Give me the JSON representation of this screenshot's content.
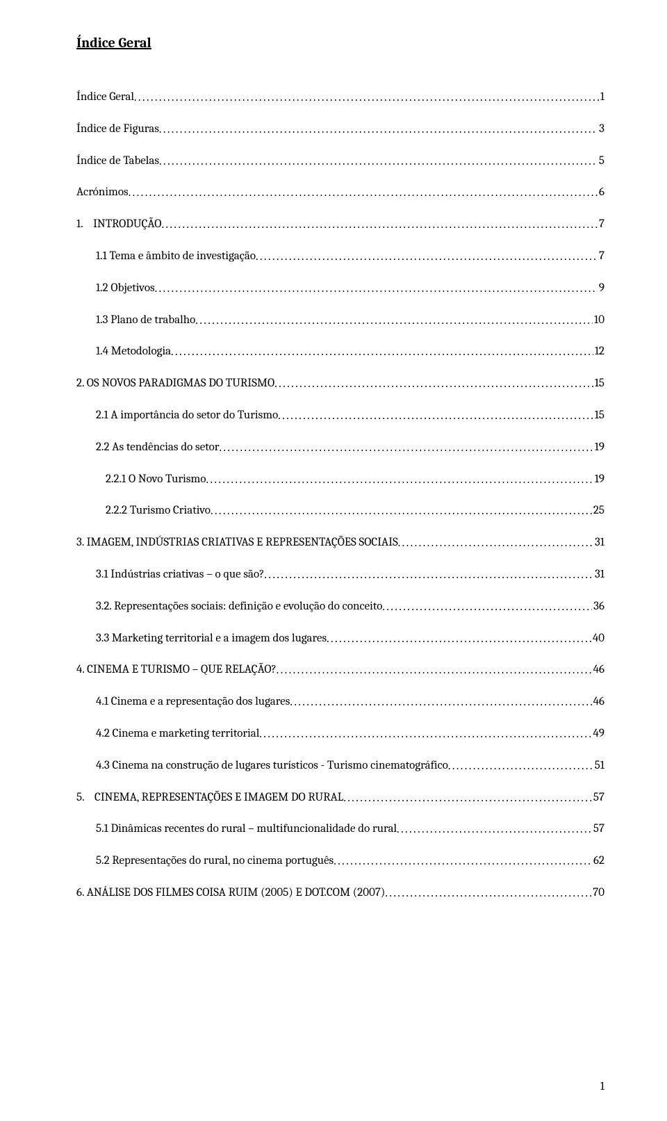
{
  "title": "Índice Geral",
  "page_number": "1",
  "entries": [
    {
      "label": "Índice Geral",
      "page": "1",
      "indent": 0
    },
    {
      "label": "Índice de Figuras",
      "page": "3",
      "indent": 0
    },
    {
      "label": "Índice de Tabelas",
      "page": "5",
      "indent": 0
    },
    {
      "label": "Acrónimos",
      "page": "6",
      "indent": 0
    },
    {
      "label": "1.    INTRODUÇÃO",
      "page": "7",
      "indent": 0
    },
    {
      "label": "1.1 Tema e âmbito de investigação",
      "page": "7",
      "indent": 1
    },
    {
      "label": "1.2 Objetivos",
      "page": "9",
      "indent": 1
    },
    {
      "label": "1.3 Plano de trabalho",
      "page": "10",
      "indent": 1
    },
    {
      "label": "1.4 Metodologia",
      "page": "12",
      "indent": 1
    },
    {
      "label": "2. OS NOVOS PARADIGMAS DO TURISMO",
      "page": "15",
      "indent": 0
    },
    {
      "label": "2.1 A importância do setor do Turismo",
      "page": "15",
      "indent": 1
    },
    {
      "label": "2.2 As tendências do setor",
      "page": "19",
      "indent": 1
    },
    {
      "label": "2.2.1 O Novo Turismo",
      "page": "19",
      "indent": 2
    },
    {
      "label": "2.2.2 Turismo Criativo",
      "page": "25",
      "indent": 2
    },
    {
      "label": "3. IMAGEM, INDÚSTRIAS CRIATIVAS E REPRESENTAÇÕES SOCIAIS",
      "page": "31",
      "indent": 0
    },
    {
      "label": "3.1 Indústrias criativas – o que são?",
      "page": "31",
      "indent": 1
    },
    {
      "label": "3.2. Representações sociais: definição e evolução do conceito",
      "page": "36",
      "indent": 1
    },
    {
      "label": "3.3 Marketing territorial e a imagem dos lugares",
      "page": "40",
      "indent": 1
    },
    {
      "label": "4. CINEMA E TURISMO – QUE RELAÇÃO?",
      "page": "46",
      "indent": 0
    },
    {
      "label": "4.1 Cinema e a representação dos lugares",
      "page": "46",
      "indent": 1
    },
    {
      "label": "4.2 Cinema e marketing territorial",
      "page": "49",
      "indent": 1
    },
    {
      "label": "4.3 Cinema na construção de lugares turísticos - Turismo cinematográfico",
      "page": "51",
      "indent": 1
    },
    {
      "label": "5.    CINEMA, REPRESENTAÇÕES E IMAGEM DO RURAL",
      "page": "57",
      "indent": 0
    },
    {
      "label": "5.1 Dinâmicas recentes do rural – multifuncionalidade do rural",
      "page": "57",
      "indent": 1
    },
    {
      "label": "5.2 Representações do rural, no cinema português",
      "page": "62",
      "indent": 1
    },
    {
      "label": "6. ANÁLISE DOS FILMES COISA RUIM (2005) E DOT.COM (2007)",
      "page": "70",
      "indent": 0
    }
  ]
}
